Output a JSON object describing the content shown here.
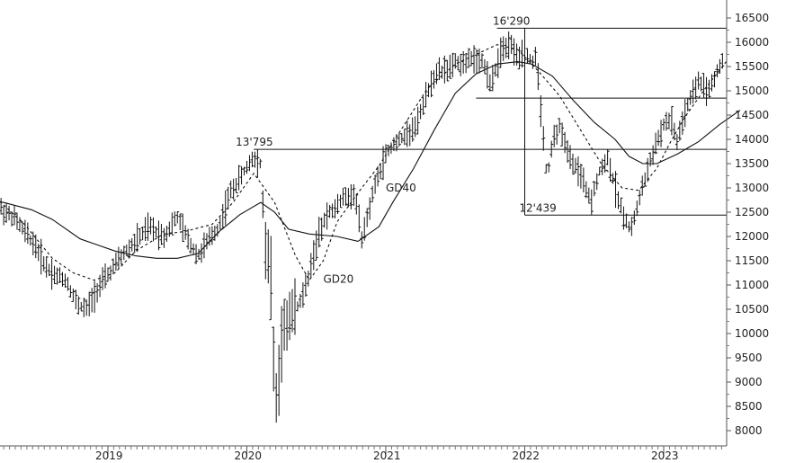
{
  "chart_data": {
    "type": "ohlc",
    "title": "",
    "xlabel": "",
    "ylabel": "",
    "ylim": [
      7800,
      16700
    ],
    "xlim": [
      2018.0,
      2023.75
    ],
    "y_ticks": [
      8000,
      8500,
      9000,
      9500,
      10000,
      10500,
      11000,
      11500,
      12000,
      12500,
      13000,
      13500,
      14000,
      14500,
      15000,
      15500,
      16000,
      16500
    ],
    "y_tick_labels": [
      "8000",
      "8500",
      "9000",
      "9500",
      "10000",
      "10500",
      "11000",
      "11500",
      "12000",
      "12500",
      "13000",
      "13500",
      "14000",
      "14500",
      "15000",
      "15500",
      "16000",
      "16500"
    ],
    "x_ticks": [
      2019,
      2020,
      2021,
      2022,
      2023
    ],
    "x_tick_labels": [
      "2019",
      "2020",
      "2021",
      "2022",
      "2023"
    ],
    "grid": false,
    "legend": "none",
    "series": [
      {
        "style": "dotted",
        "points": [
          [
            2018.0,
            12650
          ],
          [
            2018.2,
            12780
          ],
          [
            2018.4,
            12250
          ],
          [
            2018.6,
            11550
          ],
          [
            2018.75,
            11250
          ],
          [
            2018.9,
            11100
          ],
          [
            2019.05,
            11250
          ],
          [
            2019.2,
            11700
          ],
          [
            2019.4,
            12050
          ],
          [
            2019.55,
            12100
          ],
          [
            2019.75,
            12250
          ],
          [
            2019.9,
            12700
          ],
          [
            2020.05,
            13300
          ],
          [
            2020.2,
            12700
          ],
          [
            2020.35,
            11600
          ],
          [
            2020.45,
            11100
          ],
          [
            2020.55,
            11500
          ],
          [
            2020.65,
            12300
          ],
          [
            2020.8,
            12900
          ],
          [
            2020.95,
            13450
          ],
          [
            2021.1,
            14150
          ],
          [
            2021.3,
            15050
          ],
          [
            2021.5,
            15550
          ],
          [
            2021.65,
            15750
          ],
          [
            2021.8,
            15950
          ],
          [
            2021.95,
            15850
          ],
          [
            2022.1,
            15400
          ],
          [
            2022.25,
            14900
          ],
          [
            2022.4,
            14200
          ],
          [
            2022.55,
            13500
          ],
          [
            2022.7,
            13000
          ],
          [
            2022.82,
            12950
          ],
          [
            2022.95,
            13400
          ],
          [
            2023.05,
            13950
          ],
          [
            2023.15,
            14450
          ],
          [
            2023.3,
            15050
          ],
          [
            2023.45,
            15600
          ]
        ]
      },
      {
        "style": "solid",
        "name": "GD40",
        "points": [
          [
            2018.0,
            12600
          ],
          [
            2018.1,
            12750
          ],
          [
            2018.25,
            12700
          ],
          [
            2018.45,
            12550
          ],
          [
            2018.6,
            12350
          ],
          [
            2018.8,
            11950
          ],
          [
            2018.9,
            11850
          ],
          [
            2019.05,
            11700
          ],
          [
            2019.2,
            11600
          ],
          [
            2019.35,
            11550
          ],
          [
            2019.5,
            11550
          ],
          [
            2019.65,
            11650
          ],
          [
            2019.8,
            12100
          ],
          [
            2019.95,
            12450
          ],
          [
            2020.1,
            12700
          ],
          [
            2020.2,
            12500
          ],
          [
            2020.3,
            12150
          ],
          [
            2020.45,
            12050
          ],
          [
            2020.65,
            12000
          ],
          [
            2020.8,
            11900
          ],
          [
            2020.95,
            12200
          ],
          [
            2021.05,
            12700
          ],
          [
            2021.2,
            13400
          ],
          [
            2021.35,
            14200
          ],
          [
            2021.5,
            14950
          ],
          [
            2021.65,
            15350
          ],
          [
            2021.8,
            15550
          ],
          [
            2021.95,
            15600
          ],
          [
            2022.05,
            15550
          ],
          [
            2022.2,
            15300
          ],
          [
            2022.35,
            14800
          ],
          [
            2022.5,
            14350
          ],
          [
            2022.65,
            14000
          ],
          [
            2022.75,
            13650
          ],
          [
            2022.85,
            13500
          ],
          [
            2022.95,
            13500
          ],
          [
            2023.1,
            13700
          ],
          [
            2023.25,
            13950
          ],
          [
            2023.4,
            14300
          ],
          [
            2023.55,
            14600
          ]
        ]
      }
    ],
    "annotations": [
      {
        "text": "16'290",
        "x": 2021.77,
        "y": 16290
      },
      {
        "text": "13'795",
        "x": 2019.92,
        "y": 13795
      },
      {
        "text": "12'439",
        "x": 2021.96,
        "y": 12439
      },
      {
        "text": "GD40",
        "x": 2021.0,
        "y": 12850
      },
      {
        "text": "GD20",
        "x": 2020.55,
        "y": 10970
      }
    ],
    "horizontal_lines": [
      {
        "y": 16290,
        "from": 2021.8
      },
      {
        "y": 13795,
        "from": 2020.05
      },
      {
        "y": 14850,
        "from": 2021.65
      },
      {
        "y": 12439,
        "from": 2022.0
      }
    ],
    "drawdown_lines": [
      {
        "x": 2022.0,
        "from": 12439,
        "to": 16290
      }
    ],
    "bars_anchors": [
      [
        2018.0,
        12700
      ],
      [
        2018.05,
        13000
      ],
      [
        2018.12,
        12600
      ],
      [
        2018.18,
        12800
      ],
      [
        2018.25,
        12500
      ],
      [
        2018.32,
        12400
      ],
      [
        2018.4,
        12100
      ],
      [
        2018.48,
        11800
      ],
      [
        2018.55,
        11400
      ],
      [
        2018.62,
        11200
      ],
      [
        2018.7,
        11100
      ],
      [
        2018.78,
        10600
      ],
      [
        2018.85,
        10500
      ],
      [
        2018.92,
        10900
      ],
      [
        2019.0,
        11200
      ],
      [
        2019.1,
        11600
      ],
      [
        2019.2,
        11900
      ],
      [
        2019.3,
        12200
      ],
      [
        2019.4,
        12000
      ],
      [
        2019.5,
        12400
      ],
      [
        2019.58,
        11900
      ],
      [
        2019.65,
        11600
      ],
      [
        2019.72,
        11900
      ],
      [
        2019.8,
        12200
      ],
      [
        2019.88,
        12900
      ],
      [
        2019.95,
        13200
      ],
      [
        2020.05,
        13650
      ],
      [
        2020.1,
        13500
      ],
      [
        2020.13,
        11900
      ],
      [
        2020.17,
        11400
      ],
      [
        2020.2,
        9000
      ],
      [
        2020.22,
        8500
      ],
      [
        2020.25,
        9800
      ],
      [
        2020.3,
        10400
      ],
      [
        2020.38,
        10600
      ],
      [
        2020.45,
        11200
      ],
      [
        2020.52,
        12100
      ],
      [
        2020.6,
        12500
      ],
      [
        2020.7,
        12800
      ],
      [
        2020.78,
        12900
      ],
      [
        2020.83,
        11900
      ],
      [
        2020.88,
        12600
      ],
      [
        2020.93,
        13100
      ],
      [
        2021.0,
        13700
      ],
      [
        2021.08,
        13950
      ],
      [
        2021.15,
        14100
      ],
      [
        2021.22,
        14300
      ],
      [
        2021.3,
        15000
      ],
      [
        2021.38,
        15400
      ],
      [
        2021.45,
        15450
      ],
      [
        2021.52,
        15600
      ],
      [
        2021.6,
        15600
      ],
      [
        2021.68,
        15700
      ],
      [
        2021.75,
        15200
      ],
      [
        2021.82,
        15700
      ],
      [
        2021.9,
        16000
      ],
      [
        2021.96,
        15700
      ],
      [
        2022.0,
        15850
      ],
      [
        2022.05,
        15600
      ],
      [
        2022.08,
        15700
      ],
      [
        2022.12,
        14500
      ],
      [
        2022.16,
        13200
      ],
      [
        2022.2,
        13900
      ],
      [
        2022.25,
        14300
      ],
      [
        2022.3,
        13800
      ],
      [
        2022.36,
        13500
      ],
      [
        2022.42,
        13100
      ],
      [
        2022.48,
        12750
      ],
      [
        2022.53,
        13300
      ],
      [
        2022.6,
        13600
      ],
      [
        2022.66,
        12900
      ],
      [
        2022.72,
        12400
      ],
      [
        2022.76,
        12100
      ],
      [
        2022.8,
        12500
      ],
      [
        2022.86,
        13150
      ],
      [
        2022.92,
        13700
      ],
      [
        2023.0,
        14300
      ],
      [
        2023.05,
        14400
      ],
      [
        2023.1,
        13950
      ],
      [
        2023.18,
        14800
      ],
      [
        2023.25,
        15200
      ],
      [
        2023.32,
        14950
      ],
      [
        2023.38,
        15400
      ],
      [
        2023.46,
        15800
      ],
      [
        2023.52,
        16050
      ],
      [
        2023.58,
        16150
      ],
      [
        2023.62,
        15900
      ]
    ]
  }
}
